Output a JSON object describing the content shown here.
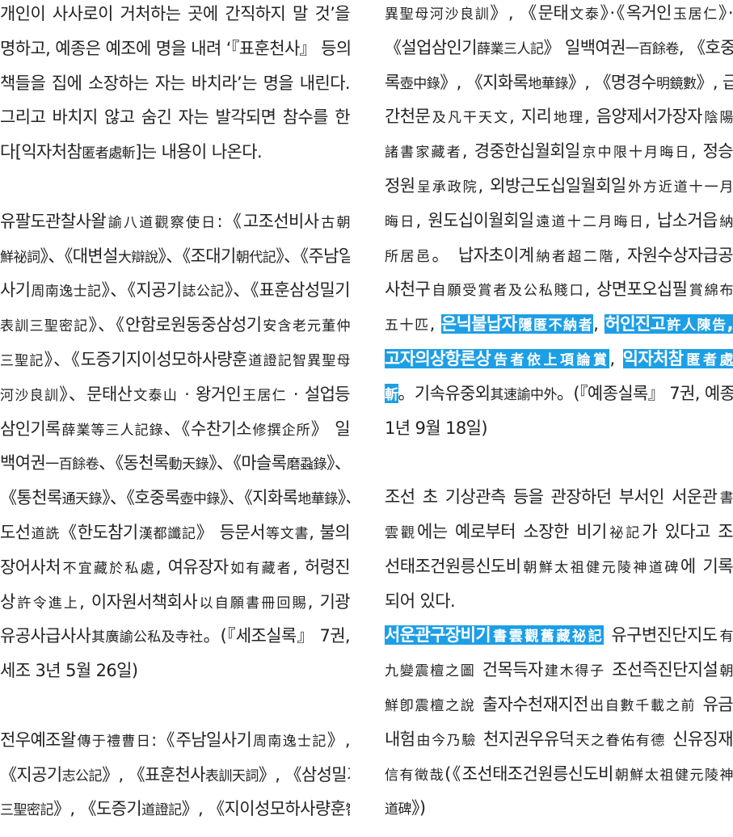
{
  "highlight_color": "#1d9fe6",
  "columns": [
    {
      "lines": [
        {
          "segs": [
            {
              "text": "개인이 사사로이 거처하는 곳에 간직하지 말 것’을"
            }
          ]
        },
        {
          "segs": [
            {
              "text": "명하고, 예종은 예조에 명을 내려 ‘『표훈천사』 등의"
            }
          ]
        },
        {
          "segs": [
            {
              "text": "책들을 집에 소장하는 자는 바치라’는 명을 내린다."
            }
          ]
        },
        {
          "segs": [
            {
              "text": "그리고 바치지 않고 숨긴 자는 발각되면 참수를 한"
            }
          ]
        },
        {
          "segs": [
            {
              "text": "다[익자처참匿者處斬]는 내용이 나온다."
            }
          ],
          "end": true
        },
        {
          "segs": [],
          "blank": true
        },
        {
          "segs": [
            {
              "text": "유팔도관찰사왈諭八道觀察使日:《고조선비사古朝"
            }
          ]
        },
        {
          "segs": [
            {
              "text": "鮮祕詞》、《대변설大辯說》、《조대기朝代記》、《주남일"
            }
          ]
        },
        {
          "segs": [
            {
              "text": "사기周南逸士記》、《지공기誌公記》、《표훈삼성밀기"
            }
          ]
        },
        {
          "segs": [
            {
              "text": "表訓三聖密記》、《안함로원동중삼성기安含老元董仲"
            }
          ]
        },
        {
          "segs": [
            {
              "text": "三聖記》、《도증기지이성모하사량훈道證記智異聖母"
            }
          ]
        },
        {
          "segs": [
            {
              "text": "河沙良訓》、문태산文泰山 · 왕거인王居仁 · 설업등"
            }
          ]
        },
        {
          "segs": [
            {
              "text": "삼인기록薛業等三人記錄、《수찬기소修撰企所》 일"
            }
          ]
        },
        {
          "segs": [
            {
              "text": "백여권一百餘卷、《동천록動天錄》、《마슬록磨蝨錄》、"
            }
          ]
        },
        {
          "segs": [
            {
              "text": "《통천록通天錄》、《호중록壺中錄》、《지화록地華錄》、"
            }
          ]
        },
        {
          "segs": [
            {
              "text": "도선道詵《한도참기漢都讖記》 등문서等文書, 불의"
            }
          ]
        },
        {
          "segs": [
            {
              "text": "장어사처不宜藏於私處, 여유장자如有藏者, 허령진"
            }
          ]
        },
        {
          "segs": [
            {
              "text": "상許令進上, 이자원서책회사以自願書冊回賜, 기광"
            }
          ]
        },
        {
          "segs": [
            {
              "text": "유공사급사사其廣諭公私及寺社。(『세조실록』 7권,"
            }
          ]
        },
        {
          "segs": [
            {
              "text": "세조 3년 5월 26일)"
            }
          ],
          "end": true
        },
        {
          "segs": [],
          "blank": true
        },
        {
          "segs": [
            {
              "text": "전우예조왈傳于禮曹日:《주남일사기周南逸士記》,"
            }
          ]
        },
        {
          "segs": [
            {
              "text": "《지공기志公記》, 《표훈천사表訓天詞》, 《삼성밀기"
            }
          ]
        },
        {
          "segs": [
            {
              "text": "三聖密記》, 《도증기道證記》, 《지이성모하사량훈智"
            }
          ]
        }
      ]
    },
    {
      "lines": [
        {
          "segs": [
            {
              "text": "異聖母河沙良訓》, 《문태文泰》·《옥거인玉居仁》·"
            }
          ]
        },
        {
          "segs": [
            {
              "text": "《설업삼인기薛業三人記》 일백여권一百餘卷, 《호중"
            }
          ]
        },
        {
          "segs": [
            {
              "text": "록壺中錄》, 《지화록地華錄》, 《명경수明鏡數》, 급범"
            }
          ]
        },
        {
          "segs": [
            {
              "text": "간천문及凡干天文, 지리地理, 음양제서가장자陰陽"
            }
          ]
        },
        {
          "segs": [
            {
              "text": "諸書家藏者, 경중한십월회일京中限十月晦日, 정승"
            }
          ]
        },
        {
          "segs": [
            {
              "text": "정원呈承政院, 외방근도십일월회일外方近道十一月"
            }
          ]
        },
        {
          "segs": [
            {
              "text": "晦日, 원도십이월회일遠道十二月晦日, 납소거읍納"
            }
          ]
        },
        {
          "segs": [
            {
              "text": "所居邑。 납자초이계納者超二階, 자원수상자급공"
            }
          ]
        },
        {
          "segs": [
            {
              "text": "사천구自願受賞者及公私賤口, 상면포오십필賞綿布"
            }
          ]
        },
        {
          "segs": [
            {
              "text": "五十匹, "
            },
            {
              "text": "은닉불납자隱匿不納者",
              "hl": true
            },
            {
              "text": ", "
            },
            {
              "text": "허인진고許人陳告,",
              "hl": true
            }
          ]
        },
        {
          "segs": [
            {
              "text": "고자의상항론상告者依上項論賞",
              "hl": true
            },
            {
              "text": ", "
            },
            {
              "text": "익자처참匿者處",
              "hl": true
            }
          ]
        },
        {
          "segs": [
            {
              "text": "斬",
              "hl": true
            },
            {
              "text": "。기속유중외其速諭中外。(『예종실록』 7권, 예종"
            }
          ]
        },
        {
          "segs": [
            {
              "text": "1년 9월 18일)"
            }
          ],
          "end": true
        },
        {
          "segs": [],
          "blank": true
        },
        {
          "segs": [
            {
              "text": "조선 초 기상관측 등을 관장하던 부서인 서운관書"
            }
          ]
        },
        {
          "segs": [
            {
              "text": "雲觀에는 예로부터 소장한 비기祕記가 있다고 조"
            }
          ]
        },
        {
          "segs": [
            {
              "text": "선태조건원릉신도비朝鮮太祖健元陵神道碑에 기록"
            }
          ]
        },
        {
          "segs": [
            {
              "text": "되어 있다."
            }
          ],
          "end": true
        },
        {
          "segs": [
            {
              "text": "서운관구장비기書雲觀舊藏祕記",
              "hl": true
            },
            {
              "text": " 유구변진단지도有"
            }
          ]
        },
        {
          "segs": [
            {
              "text": "九變震檀之圖 건목득자建木得子 조선즉진단지설朝"
            }
          ]
        },
        {
          "segs": [
            {
              "text": "鮮卽震檀之說 출자수천재지전出自數千載之前 유금"
            }
          ]
        },
        {
          "segs": [
            {
              "text": "내험由今乃驗 천지권우유덕天之眷佑有德 신유징재"
            }
          ]
        },
        {
          "segs": [
            {
              "text": "信有徵哉(《조선태조건원릉신도비朝鮮太祖健元陵神"
            }
          ]
        },
        {
          "segs": [
            {
              "text": "道碑》)"
            }
          ],
          "end": true
        }
      ]
    }
  ]
}
